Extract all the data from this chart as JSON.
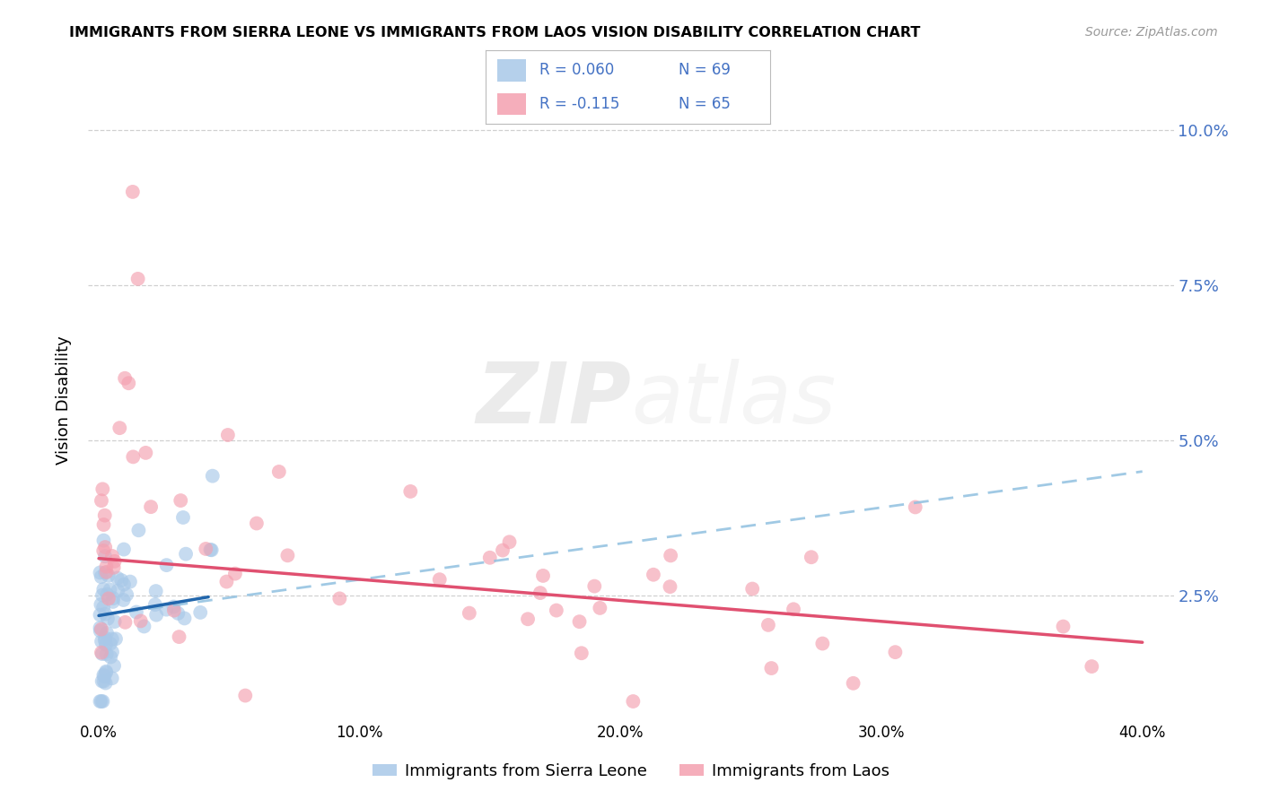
{
  "title": "IMMIGRANTS FROM SIERRA LEONE VS IMMIGRANTS FROM LAOS VISION DISABILITY CORRELATION CHART",
  "source": "Source: ZipAtlas.com",
  "xlabel_ticks": [
    "0.0%",
    "10.0%",
    "20.0%",
    "30.0%",
    "40.0%"
  ],
  "ylabel_ticks": [
    "2.5%",
    "5.0%",
    "7.5%",
    "10.0%"
  ],
  "xlabel_tick_vals": [
    0.0,
    0.1,
    0.2,
    0.3,
    0.4
  ],
  "ylabel_tick_vals": [
    0.025,
    0.05,
    0.075,
    0.1
  ],
  "ylabel_label": "Vision Disability",
  "xlim": [
    -0.004,
    0.412
  ],
  "ylim": [
    0.005,
    0.108
  ],
  "watermark": "ZIPatlas",
  "sierra_leone_color": "#a8c8e8",
  "laos_color": "#f4a0b0",
  "sierra_leone_line_color": "#2166ac",
  "laos_line_color": "#e05070",
  "dashed_line_color": "#90c0e0",
  "background_color": "#ffffff",
  "grid_color": "#d0d0d0",
  "tick_color": "#4472c4",
  "legend_r1": "R = 0.060",
  "legend_n1": "N = 69",
  "legend_r2": "R = -0.115",
  "legend_n2": "N = 65",
  "bottom_legend_1": "Immigrants from Sierra Leone",
  "bottom_legend_2": "Immigrants from Laos",
  "sl_line_x0": 0.0,
  "sl_line_x1": 0.042,
  "sl_line_y0": 0.0218,
  "sl_line_y1": 0.0248,
  "laos_line_x0": 0.0,
  "laos_line_x1": 0.4,
  "laos_line_y0": 0.031,
  "laos_line_y1": 0.0175,
  "dashed_line_x0": 0.0,
  "dashed_line_x1": 0.4,
  "dashed_line_y0": 0.0218,
  "dashed_line_y1": 0.045
}
